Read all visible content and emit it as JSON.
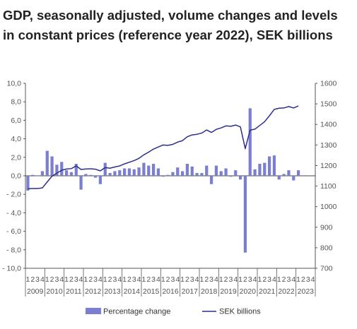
{
  "chart_data": {
    "type": "bar",
    "title": "GDP, seasonally adjusted, volume changes and levels in constant prices (reference year 2022), SEK billions",
    "y_left": {
      "ticks": [
        "10,0",
        "8,0",
        "6,0",
        "4,0",
        "2,0",
        "0,0",
        "- 2,0",
        "- 4,0",
        "- 6,0",
        "- 8,0",
        "- 10,0"
      ],
      "ylim": [
        -10,
        10
      ]
    },
    "y_right": {
      "ticks": [
        "1600",
        "1500",
        "1400",
        "1300",
        "1200",
        "1100",
        "1000",
        "900",
        "800",
        "700"
      ],
      "ylim": [
        700,
        1600
      ]
    },
    "x_quarter_labels": [
      "1",
      "2",
      "3",
      "4"
    ],
    "years": [
      "2009",
      "2010",
      "2011",
      "2012",
      "2013",
      "2014",
      "2015",
      "2016",
      "2017",
      "2018",
      "2019",
      "2020",
      "2021",
      "2022",
      "2023"
    ],
    "quarters": [
      "2009Q1",
      "2009Q2",
      "2009Q3",
      "2009Q4",
      "2010Q1",
      "2010Q2",
      "2010Q3",
      "2010Q4",
      "2011Q1",
      "2011Q2",
      "2011Q3",
      "2011Q4",
      "2012Q1",
      "2012Q2",
      "2012Q3",
      "2012Q4",
      "2013Q1",
      "2013Q2",
      "2013Q3",
      "2013Q4",
      "2014Q1",
      "2014Q2",
      "2014Q3",
      "2014Q4",
      "2015Q1",
      "2015Q2",
      "2015Q3",
      "2015Q4",
      "2016Q1",
      "2016Q2",
      "2016Q3",
      "2016Q4",
      "2017Q1",
      "2017Q2",
      "2017Q3",
      "2017Q4",
      "2018Q1",
      "2018Q2",
      "2018Q3",
      "2018Q4",
      "2019Q1",
      "2019Q2",
      "2019Q3",
      "2019Q4",
      "2020Q1",
      "2020Q2",
      "2020Q3",
      "2020Q4",
      "2021Q1",
      "2021Q2",
      "2021Q3",
      "2021Q4",
      "2022Q1",
      "2022Q2",
      "2022Q3",
      "2022Q4",
      "2023Q1",
      "2023Q2",
      "2023Q3",
      "2023Q4"
    ],
    "series": [
      {
        "name": "Percentage change",
        "type": "bar",
        "axis": "left",
        "color": "#7b7fd1",
        "values": [
          -1.6,
          0.1,
          0.0,
          0.5,
          2.7,
          2.1,
          1.2,
          1.5,
          0.6,
          0.4,
          1.3,
          -1.5,
          0.2,
          0.1,
          -0.2,
          -0.9,
          1.4,
          0.3,
          0.5,
          0.6,
          0.8,
          0.8,
          0.7,
          0.9,
          1.4,
          1.1,
          1.3,
          0.8,
          -0.1,
          0.1,
          0.4,
          0.9,
          0.5,
          1.3,
          1.0,
          0.3,
          0.3,
          1.1,
          -0.9,
          1.1,
          0.5,
          0.8,
          -0.1,
          0.6,
          -0.4,
          -8.3,
          7.3,
          0.7,
          1.3,
          1.4,
          2.1,
          2.2,
          -0.4,
          0.2,
          0.6,
          -0.5,
          0.6,
          null,
          null,
          null
        ]
      },
      {
        "name": "SEK billions",
        "type": "line",
        "axis": "right",
        "color": "#2b2f8a",
        "values": [
          1087,
          1088,
          1088,
          1091,
          1120,
          1148,
          1163,
          1177,
          1183,
          1185,
          1198,
          1181,
          1183,
          1184,
          1182,
          1174,
          1190,
          1187,
          1193,
          1198,
          1208,
          1216,
          1224,
          1235,
          1252,
          1265,
          1280,
          1290,
          1300,
          1298,
          1303,
          1314,
          1321,
          1340,
          1349,
          1352,
          1358,
          1373,
          1361,
          1376,
          1383,
          1393,
          1391,
          1397,
          1388,
          1282,
          1372,
          1377,
          1395,
          1413,
          1442,
          1473,
          1479,
          1480,
          1487,
          1480,
          1490,
          null,
          null,
          null
        ]
      }
    ],
    "legend_position": "bottom",
    "grid": false
  }
}
